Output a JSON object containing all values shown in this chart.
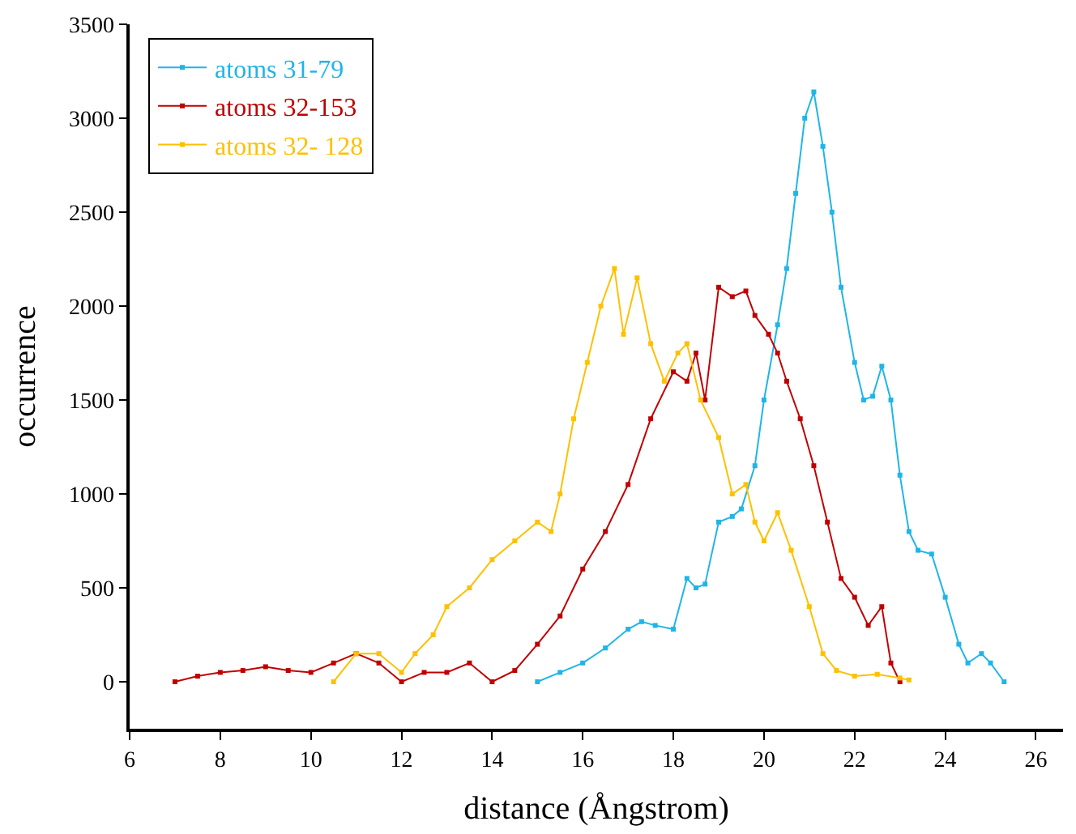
{
  "chart_data": {
    "type": "line",
    "xlabel": "distance (Ångstrom)",
    "ylabel": "occurrence",
    "xlim": [
      6,
      26.6
    ],
    "xticks": [
      6,
      8,
      10,
      12,
      14,
      16,
      18,
      20,
      22,
      24,
      26
    ],
    "ylim": [
      -250,
      3500
    ],
    "yticks": [
      0,
      500,
      1000,
      1500,
      2000,
      2500,
      3000,
      3500
    ],
    "legend": "top left",
    "marker": "square",
    "line_style": "solid",
    "series": [
      {
        "name": "atoms 31-79",
        "color": "#1fb5e8",
        "x": [
          15,
          15.5,
          16,
          16.5,
          17,
          17.3,
          17.6,
          18,
          18.3,
          18.5,
          18.7,
          19,
          19.3,
          19.5,
          19.8,
          20,
          20.3,
          20.5,
          20.7,
          20.9,
          21.1,
          21.3,
          21.5,
          21.7,
          22,
          22.2,
          22.4,
          22.6,
          22.8,
          23,
          23.2,
          23.4,
          23.7,
          24,
          24.3,
          24.5,
          24.8,
          25,
          25.3
        ],
        "values": [
          0,
          50,
          100,
          180,
          280,
          320,
          300,
          280,
          550,
          500,
          520,
          850,
          880,
          920,
          1150,
          1500,
          1900,
          2200,
          2600,
          3000,
          3140,
          2850,
          2500,
          2100,
          1700,
          1500,
          1520,
          1680,
          1500,
          1100,
          800,
          700,
          680,
          450,
          200,
          100,
          150,
          100,
          0
        ]
      },
      {
        "name": "atoms 32-153",
        "color": "#c00000",
        "x": [
          7,
          7.5,
          8,
          8.5,
          9,
          9.5,
          10,
          10.5,
          11,
          11.5,
          12,
          12.5,
          13,
          13.5,
          14,
          14.5,
          15,
          15.5,
          16,
          16.5,
          17,
          17.5,
          18,
          18.3,
          18.5,
          18.7,
          19,
          19.3,
          19.6,
          19.8,
          20.1,
          20.3,
          20.5,
          20.8,
          21.1,
          21.4,
          21.7,
          22,
          22.3,
          22.6,
          22.8,
          23
        ],
        "values": [
          0,
          30,
          50,
          60,
          80,
          60,
          50,
          100,
          150,
          100,
          0,
          50,
          50,
          100,
          0,
          60,
          200,
          350,
          600,
          800,
          1050,
          1400,
          1650,
          1600,
          1750,
          1500,
          2100,
          2050,
          2080,
          1950,
          1850,
          1750,
          1600,
          1400,
          1150,
          850,
          550,
          450,
          300,
          400,
          100,
          0
        ]
      },
      {
        "name": "atoms 32- 128",
        "color": "#ffc000",
        "x": [
          10.5,
          11,
          11.5,
          12,
          12.3,
          12.7,
          13,
          13.5,
          14,
          14.5,
          15,
          15.3,
          15.5,
          15.8,
          16.1,
          16.4,
          16.7,
          16.9,
          17.2,
          17.5,
          17.8,
          18.1,
          18.3,
          18.6,
          19,
          19.3,
          19.6,
          19.8,
          20,
          20.3,
          20.6,
          21,
          21.3,
          21.6,
          22,
          22.5,
          23,
          23.2
        ],
        "values": [
          0,
          150,
          150,
          50,
          150,
          250,
          400,
          500,
          650,
          750,
          850,
          800,
          1000,
          1400,
          1700,
          2000,
          2200,
          1850,
          2150,
          1800,
          1600,
          1750,
          1800,
          1500,
          1300,
          1000,
          1050,
          850,
          750,
          900,
          700,
          400,
          150,
          60,
          30,
          40,
          20,
          10
        ]
      }
    ]
  }
}
